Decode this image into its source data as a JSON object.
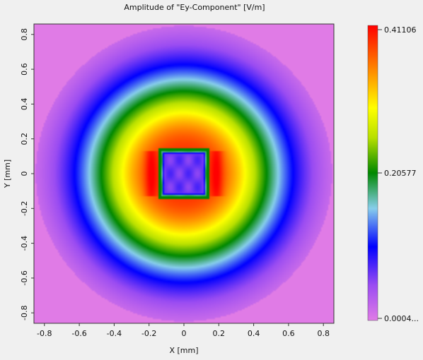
{
  "chart_data": {
    "type": "heatmap",
    "title": "Amplitude of \"Ey-Component\"  [V/m]",
    "xlabel": "X [mm]",
    "ylabel": "Y [mm]",
    "xlim": [
      -0.86,
      0.86
    ],
    "ylim": [
      -0.86,
      0.86
    ],
    "x_ticks": [
      "-0.8",
      "-0.6",
      "-0.4",
      "-0.2",
      "0",
      "0.2",
      "0.4",
      "0.6",
      "0.8"
    ],
    "y_ticks": [
      "0.8",
      "0.6",
      "0.4",
      "0.2",
      "0",
      "-0.2",
      "-0.4",
      "-0.6",
      "-0.8"
    ],
    "colorbar": {
      "max_label": "0.41106",
      "mid_label": "0.20577",
      "min_label": "0.0004...",
      "max": 0.41106,
      "mid": 0.20577,
      "min": 0.0004
    },
    "colormap": [
      "#e07be6",
      "#9a4cf2",
      "#0000ff",
      "#87ceeb",
      "#008800",
      "#b8e000",
      "#ffff00",
      "#ff8800",
      "#ff0000"
    ],
    "field": {
      "description_of_pattern": "radial ring maximum near r=0.2 mm around a square aperture",
      "aperture_half_width": 0.13,
      "value_at_center": 0.09,
      "value_at_ring_peak": 0.41106,
      "value_at_corners": 0.0004
    }
  }
}
